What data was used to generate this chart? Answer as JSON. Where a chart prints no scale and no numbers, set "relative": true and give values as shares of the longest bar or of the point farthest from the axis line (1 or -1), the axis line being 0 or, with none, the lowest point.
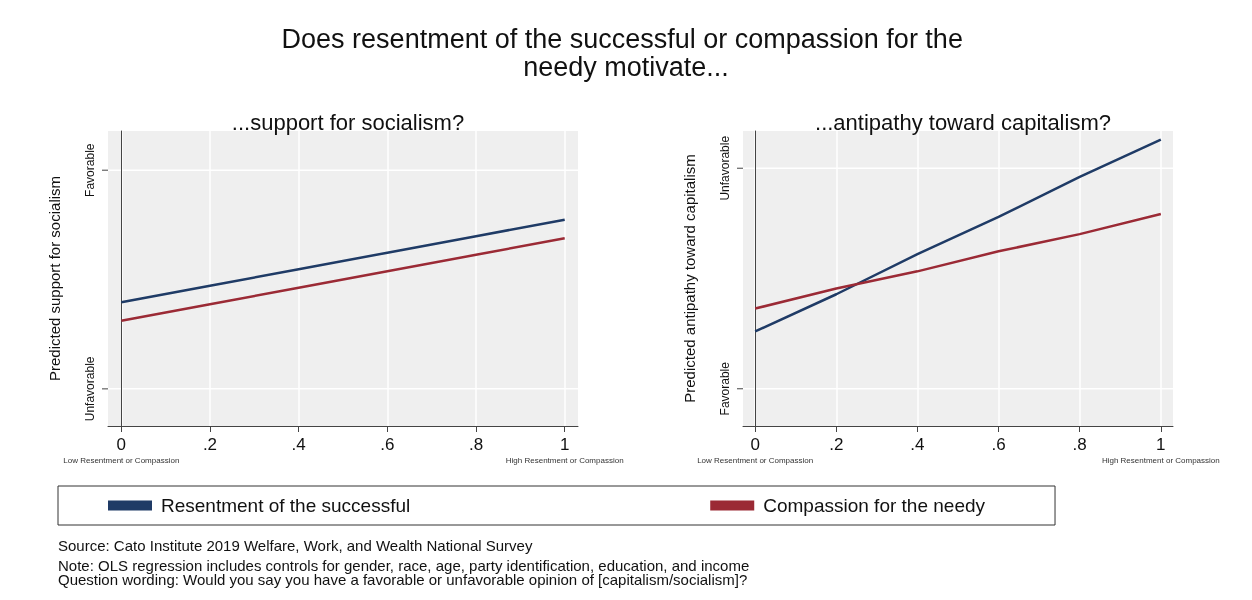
{
  "chart_data": [
    {
      "type": "other",
      "title": "Does resentment of the successful or compassion for the needy motivate...",
      "annotations": [
        "Source: Cato Institute 2019 Welfare, Work, and Wealth National Survey",
        "Note: OLS regression includes controls for gender, race, age, party identification, education, and income",
        "Question wording: Would you say you have a favorable or unfavorable opinion of [capitalism/socialism]?"
      ]
    },
    {
      "type": "line",
      "title": "...support for socialism?",
      "ylabel": "Predicted support for socialism",
      "relative": true,
      "annotations": [
        "Unfavorable",
        "Favorable"
      ],
      "series": [
        {
          "name": "Resentment of the successful",
          "color": "#1f3b66",
          "x": [
            0,
            0.2,
            0.4,
            0.6,
            0.8,
            1
          ],
          "values": [
            0.6,
            0.68,
            0.76,
            0.84,
            0.92,
            1
          ]
        },
        {
          "name": "Compassion for the needy",
          "color": "#9b2a35",
          "x": [
            0,
            0.2,
            0.4,
            0.6,
            0.8,
            1
          ],
          "values": [
            0.51,
            0.59,
            0.67,
            0.75,
            0.83,
            0.91
          ]
        }
      ],
      "xlim": [
        -0.03,
        1.03
      ],
      "xticks": [
        {
          "value": 0,
          "label": "0\nLow Resentment or Compassion"
        },
        {
          "value": 0.2,
          "label": ".2"
        },
        {
          "value": 0.4,
          "label": ".4"
        },
        {
          "value": 0.6,
          "label": ".6"
        },
        {
          "value": 0.8,
          "label": ".8"
        },
        {
          "value": 1,
          "label": "1\nHigh Resentment or Compassion"
        }
      ],
      "grid": true,
      "legend": "bottom",
      "marker": "none",
      "line_style": "solid"
    },
    {
      "type": "line",
      "title": "...antipathy toward capitalism?",
      "ylabel": "Predicted antipathy toward capitalism",
      "relative": true,
      "annotations": [
        "Favorable",
        "Unfavorable"
      ],
      "series": [
        {
          "color": "#1f3b66",
          "x": [
            0,
            0.2,
            0.4,
            0.6,
            0.8,
            1
          ],
          "values": [
            0.33,
            0.46,
            0.6,
            0.73,
            0.87,
            1
          ]
        },
        {
          "color": "#9b2a35",
          "x": [
            0,
            0.2,
            0.4,
            0.6,
            0.8,
            1
          ],
          "values": [
            0.41,
            0.48,
            0.54,
            0.61,
            0.67,
            0.74
          ]
        }
      ],
      "xlim": [
        -0.03,
        1.03
      ],
      "xticks": [
        {
          "value": 0,
          "label": "0\nLow Resentment or Compassion"
        },
        {
          "value": 0.2,
          "label": ".2"
        },
        {
          "value": 0.4,
          "label": ".4"
        },
        {
          "value": 0.6,
          "label": ".6"
        },
        {
          "value": 0.8,
          "label": ".8"
        },
        {
          "value": 1,
          "label": "1\nHigh Resentment or Compassion"
        }
      ],
      "grid": true,
      "marker": "none",
      "line_style": "solid"
    }
  ]
}
